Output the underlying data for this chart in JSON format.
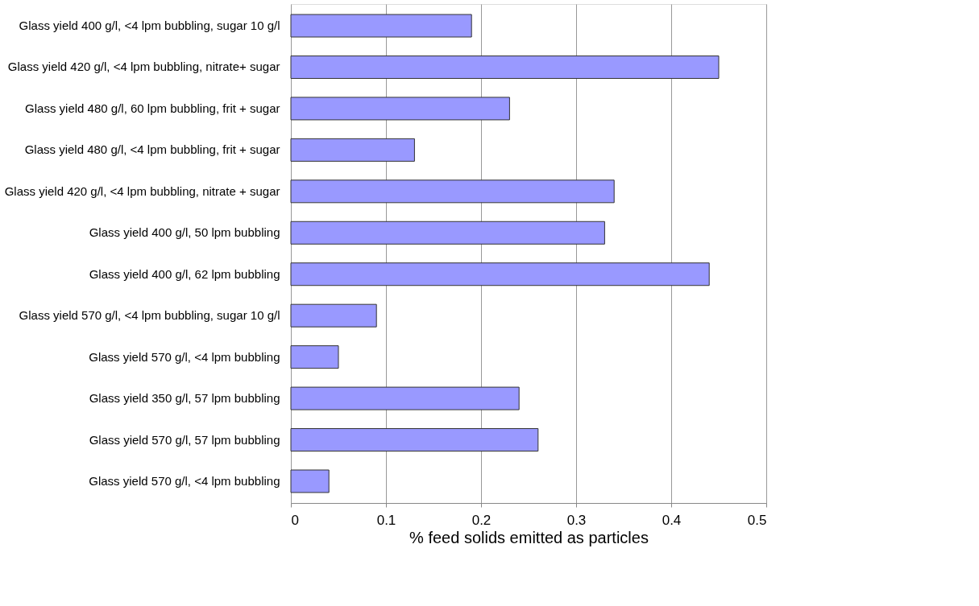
{
  "chart_data": {
    "type": "bar",
    "orientation": "horizontal",
    "categories": [
      "Glass yield 400 g/l, <4 lpm bubbling, sugar 10 g/l",
      "Glass yield 420 g/l, <4 lpm bubbling, nitrate+ sugar",
      "Glass yield 480 g/l, 60 lpm bubbling, frit + sugar",
      "Glass yield 480 g/l, <4 lpm bubbling, frit + sugar",
      "Glass yield 420 g/l, <4 lpm bubbling, nitrate + sugar",
      "Glass yield 400 g/l, 50 lpm bubbling",
      "Glass yield 400 g/l, 62 lpm bubbling",
      "Glass yield 570 g/l, <4 lpm bubbling, sugar 10 g/l",
      "Glass yield 570 g/l, <4 lpm bubbling",
      "Glass yield 350 g/l, 57 lpm bubbling",
      "Glass yield 570 g/l, 57 lpm bubbling",
      "Glass yield 570 g/l, <4 lpm bubbling"
    ],
    "values": [
      0.19,
      0.45,
      0.23,
      0.13,
      0.34,
      0.33,
      0.44,
      0.09,
      0.05,
      0.24,
      0.26,
      0.04
    ],
    "color": "#9999ff",
    "xlim": [
      0,
      0.5
    ],
    "xticks": [
      0,
      0.1,
      0.2,
      0.3,
      0.4,
      0.5
    ],
    "grid": "x",
    "xlabel": "% feed solids emitted as particles"
  }
}
